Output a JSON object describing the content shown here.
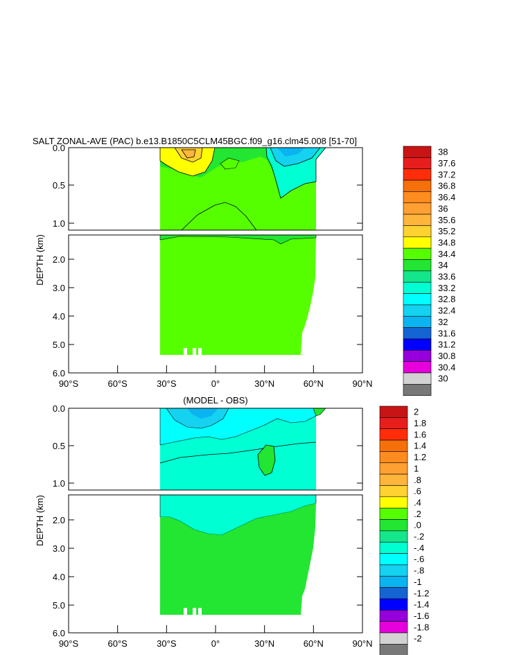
{
  "chart_data": [
    {
      "type": "contour",
      "title": "SALT ZONAL-AVE (PAC) b.e13.B1850C5CLM45BGC.f09_g16.clm45.008 [51-70]",
      "ylabel": "DEPTH (km)",
      "x_ticks": [
        "90°S",
        "60°S",
        "30°S",
        "0°",
        "30°N",
        "60°N",
        "90°N"
      ],
      "y_ticks_upper": [
        "0.0",
        "0.5",
        "1.0"
      ],
      "y_ticks_lower": [
        "2.0",
        "3.0",
        "4.0",
        "5.0",
        "6.0"
      ],
      "xlim": [
        -90,
        90
      ],
      "ylim": [
        6.0,
        0.0
      ],
      "data_extent_lat": [
        -33,
        61
      ],
      "legend_position": "right",
      "colorbar_labels": [
        "38",
        "37.6",
        "37.2",
        "36.8",
        "36.4",
        "36",
        "35.6",
        "35.2",
        "34.8",
        "34.4",
        "34",
        "33.6",
        "33.2",
        "32.8",
        "32.4",
        "32",
        "31.6",
        "31.2",
        "30.8",
        "30.4",
        "30"
      ],
      "colorbar_colors": [
        "#c81414",
        "#e61e1e",
        "#ff2d0a",
        "#f5700a",
        "#ff8c1e",
        "#ffa032",
        "#ffb43c",
        "#ffd232",
        "#ffff00",
        "#55ff00",
        "#22e632",
        "#14e68c",
        "#00ffd2",
        "#00ffff",
        "#14d2f0",
        "#0ab4f0",
        "#1464d2",
        "#0000ff",
        "#9600dc",
        "#e600dc",
        "#d2d2d2",
        "#787878"
      ]
    },
    {
      "type": "contour",
      "title": "(MODEL - OBS)",
      "ylabel": "DEPTH (km)",
      "x_ticks": [
        "90°S",
        "60°S",
        "30°S",
        "0°",
        "30°N",
        "60°N",
        "90°N"
      ],
      "y_ticks_upper": [
        "0.0",
        "0.5",
        "1.0"
      ],
      "y_ticks_lower": [
        "2.0",
        "3.0",
        "4.0",
        "5.0",
        "6.0"
      ],
      "xlim": [
        -90,
        90
      ],
      "ylim": [
        6.0,
        0.0
      ],
      "data_extent_lat": [
        -33,
        61
      ],
      "legend_position": "right",
      "colorbar_labels": [
        "2",
        "1.8",
        "1.6",
        "1.4",
        "1.2",
        "1",
        ".8",
        ".6",
        ".4",
        ".2",
        ".0",
        "-.2",
        "-.4",
        "-.6",
        "-.8",
        "-1",
        "-1.2",
        "-1.4",
        "-1.6",
        "-1.8",
        "-2"
      ],
      "colorbar_colors": [
        "#c81414",
        "#e61e1e",
        "#ff2d0a",
        "#f5700a",
        "#ff8c1e",
        "#ffa032",
        "#ffb43c",
        "#ffd232",
        "#ffff00",
        "#55ff00",
        "#22e632",
        "#14e68c",
        "#00ffd2",
        "#00ffff",
        "#14d2f0",
        "#0ab4f0",
        "#1464d2",
        "#0000ff",
        "#9600dc",
        "#e600dc",
        "#d2d2d2",
        "#787878"
      ]
    }
  ]
}
